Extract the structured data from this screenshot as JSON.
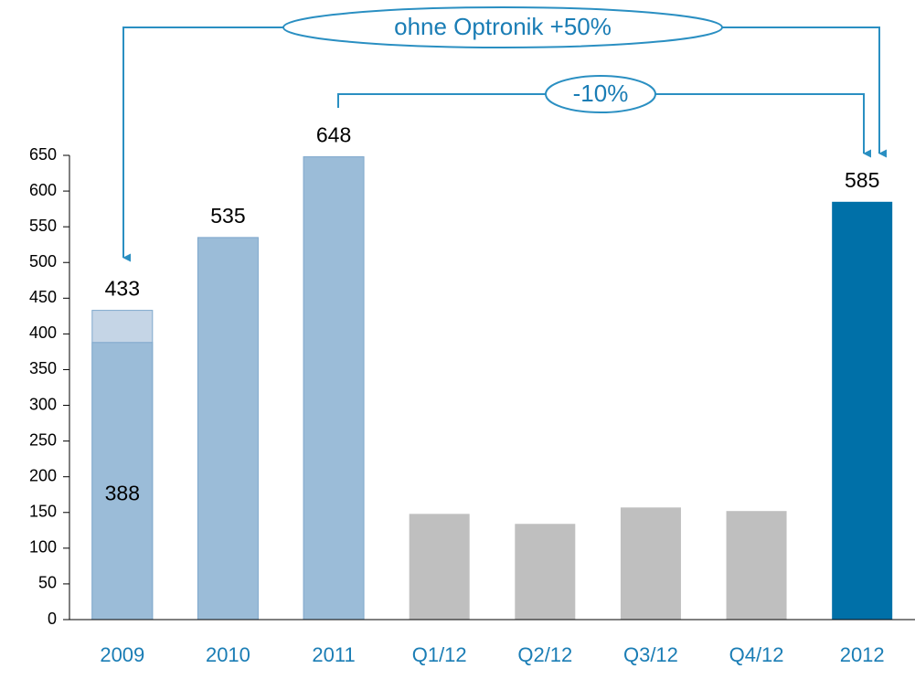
{
  "chart_data": {
    "type": "bar",
    "categories": [
      "2009",
      "2010",
      "2011",
      "Q1/12",
      "Q2/12",
      "Q3/12",
      "Q4/12",
      "2012"
    ],
    "series": [
      {
        "values": [
          433,
          535,
          648,
          null,
          null,
          null,
          null,
          585
        ],
        "colors": [
          "#c5d5e6",
          "#9bbcd8",
          "#9bbcd8",
          null,
          null,
          null,
          null,
          "#0070a8"
        ],
        "data_labels": true
      },
      {
        "values": [
          388,
          null,
          null,
          null,
          null,
          null,
          null,
          null
        ],
        "color": "#9bbcd8",
        "data_labels": true
      },
      {
        "values": [
          null,
          null,
          null,
          148,
          134,
          157,
          152,
          null
        ],
        "color": "#bfbfbf",
        "data_labels": false
      }
    ],
    "ylim": [
      0,
      650
    ],
    "yticks": [
      0,
      50,
      100,
      150,
      200,
      250,
      300,
      350,
      400,
      450,
      500,
      550,
      600,
      650
    ],
    "annotations": [
      "ohne Optronik +50%",
      "-10%"
    ]
  }
}
